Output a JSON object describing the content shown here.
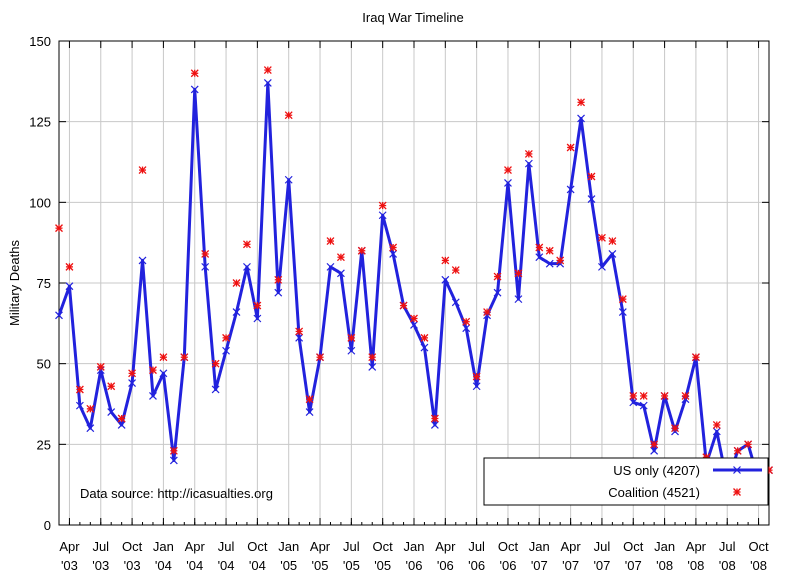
{
  "chart_data": {
    "type": "line",
    "title": "Iraq War Timeline",
    "xlabel": "",
    "ylabel": "Military Deaths",
    "ylim": [
      0,
      150
    ],
    "yticks": [
      0,
      25,
      50,
      75,
      100,
      125,
      150
    ],
    "grid": true,
    "legend_position": "bottom-right",
    "annotation": "Data source: http://icasualties.org",
    "x_tick_labels": [
      {
        "month": "Apr",
        "year": "'03"
      },
      {
        "month": "Jul",
        "year": "'03"
      },
      {
        "month": "Oct",
        "year": "'03"
      },
      {
        "month": "Jan",
        "year": "'04"
      },
      {
        "month": "Apr",
        "year": "'04"
      },
      {
        "month": "Jul",
        "year": "'04"
      },
      {
        "month": "Oct",
        "year": "'04"
      },
      {
        "month": "Jan",
        "year": "'05"
      },
      {
        "month": "Apr",
        "year": "'05"
      },
      {
        "month": "Jul",
        "year": "'05"
      },
      {
        "month": "Oct",
        "year": "'05"
      },
      {
        "month": "Jan",
        "year": "'06"
      },
      {
        "month": "Apr",
        "year": "'06"
      },
      {
        "month": "Jul",
        "year": "'06"
      },
      {
        "month": "Oct",
        "year": "'06"
      },
      {
        "month": "Jan",
        "year": "'07"
      },
      {
        "month": "Apr",
        "year": "'07"
      },
      {
        "month": "Jul",
        "year": "'07"
      },
      {
        "month": "Oct",
        "year": "'07"
      },
      {
        "month": "Jan",
        "year": "'08"
      },
      {
        "month": "Apr",
        "year": "'08"
      },
      {
        "month": "Jul",
        "year": "'08"
      },
      {
        "month": "Oct",
        "year": "'08"
      }
    ],
    "x": [
      "2003-03",
      "2003-04",
      "2003-05",
      "2003-06",
      "2003-07",
      "2003-08",
      "2003-09",
      "2003-10",
      "2003-11",
      "2003-12",
      "2004-01",
      "2004-02",
      "2004-03",
      "2004-04",
      "2004-05",
      "2004-06",
      "2004-07",
      "2004-08",
      "2004-09",
      "2004-10",
      "2004-11",
      "2004-12",
      "2005-01",
      "2005-02",
      "2005-03",
      "2005-04",
      "2005-05",
      "2005-06",
      "2005-07",
      "2005-08",
      "2005-09",
      "2005-10",
      "2005-11",
      "2005-12",
      "2006-01",
      "2006-02",
      "2006-03",
      "2006-04",
      "2006-05",
      "2006-06",
      "2006-07",
      "2006-08",
      "2006-09",
      "2006-10",
      "2006-11",
      "2006-12",
      "2007-01",
      "2007-02",
      "2007-03",
      "2007-04",
      "2007-05",
      "2007-06",
      "2007-07",
      "2007-08",
      "2007-09",
      "2007-10",
      "2007-11",
      "2007-12",
      "2008-01",
      "2008-02",
      "2008-03",
      "2008-04",
      "2008-05",
      "2008-06",
      "2008-07",
      "2008-08",
      "2008-09",
      "2008-10",
      "2008-11"
    ],
    "series": [
      {
        "name": "US only (4207)",
        "color": "#2222dd",
        "marker": "x",
        "line": true,
        "values": [
          65,
          74,
          37,
          30,
          48,
          35,
          31,
          44,
          82,
          40,
          47,
          20,
          52,
          135,
          80,
          42,
          54,
          66,
          80,
          64,
          137,
          72,
          107,
          58,
          35,
          52,
          80,
          78,
          54,
          85,
          49,
          96,
          84,
          68,
          62,
          55,
          31,
          76,
          69,
          61,
          43,
          65,
          72,
          106,
          70,
          112,
          83,
          81,
          81,
          104,
          126,
          101,
          80,
          84,
          66,
          38,
          37,
          23,
          40,
          29,
          39,
          52,
          19,
          29,
          13,
          23,
          25,
          14,
          17
        ]
      },
      {
        "name": "Coalition (4521)",
        "color": "#ee1111",
        "marker": "star",
        "line": false,
        "values": [
          92,
          80,
          42,
          36,
          49,
          43,
          33,
          47,
          110,
          48,
          52,
          23,
          52,
          140,
          84,
          50,
          58,
          75,
          87,
          68,
          141,
          76,
          127,
          60,
          39,
          52,
          88,
          83,
          58,
          85,
          52,
          99,
          86,
          68,
          64,
          58,
          33,
          82,
          79,
          63,
          46,
          66,
          77,
          110,
          78,
          115,
          86,
          85,
          82,
          117,
          131,
          108,
          89,
          88,
          70,
          40,
          40,
          25,
          40,
          30,
          40,
          52,
          21,
          31,
          13,
          23,
          25,
          14,
          17
        ]
      }
    ]
  }
}
